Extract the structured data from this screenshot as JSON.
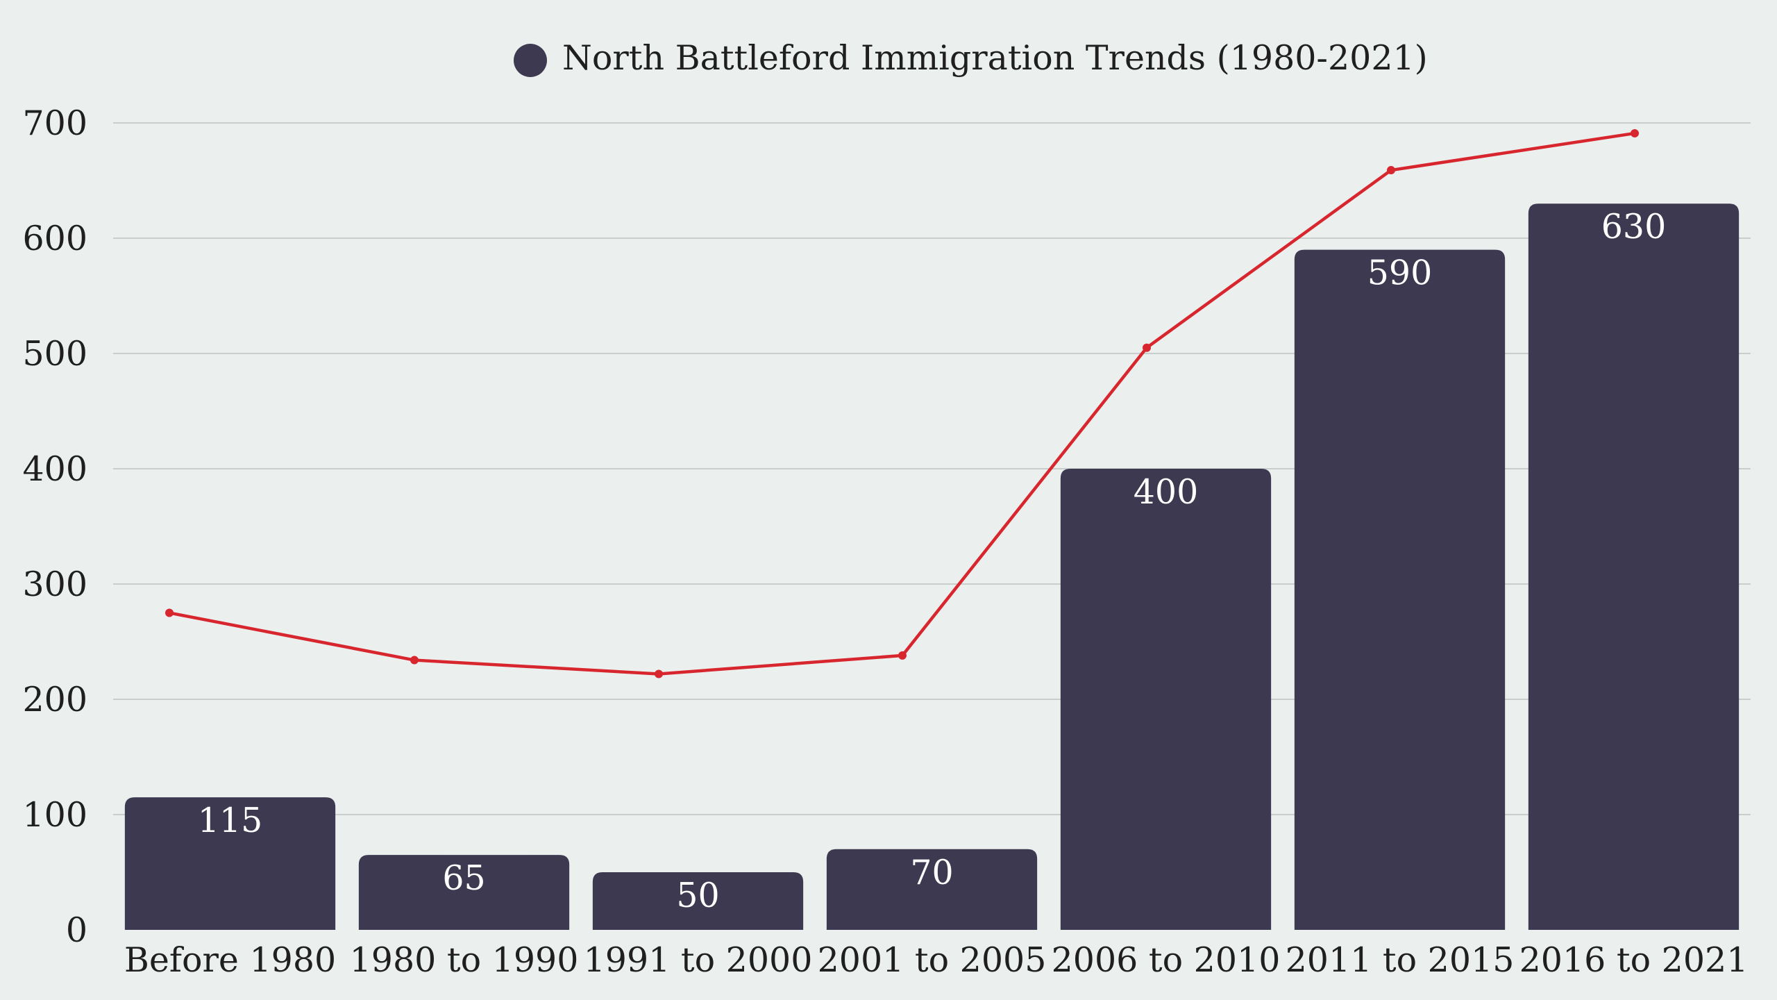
{
  "colors": {
    "background": "#ebefed",
    "bar": "#3d3950",
    "line": "#d8262e",
    "grid": "#c9cecc",
    "bar_label": "#ffffff",
    "text": "#1f1f1f"
  },
  "chart_data": {
    "type": "bar",
    "categories": [
      "Before 1980",
      "1980 to 1990",
      "1991 to 2000",
      "2001 to 2005",
      "2006 to 2010",
      "2011 to 2015",
      "2016 to 2021"
    ],
    "series": [
      {
        "name": "North Battleford Immigration Trends (1980-2021)",
        "type": "bar",
        "values": [
          115,
          65,
          50,
          70,
          400,
          590,
          630
        ],
        "labels": [
          "115",
          "65",
          "50",
          "70",
          "400",
          "590",
          "630"
        ]
      },
      {
        "type": "line",
        "values": [
          275,
          234,
          222,
          238,
          505,
          659,
          691
        ]
      }
    ],
    "y_ticks": [
      "0",
      "100",
      "200",
      "300",
      "400",
      "500",
      "600",
      "700"
    ],
    "ylim": [
      0,
      700
    ],
    "grid": true,
    "legend_position": "top-center"
  }
}
